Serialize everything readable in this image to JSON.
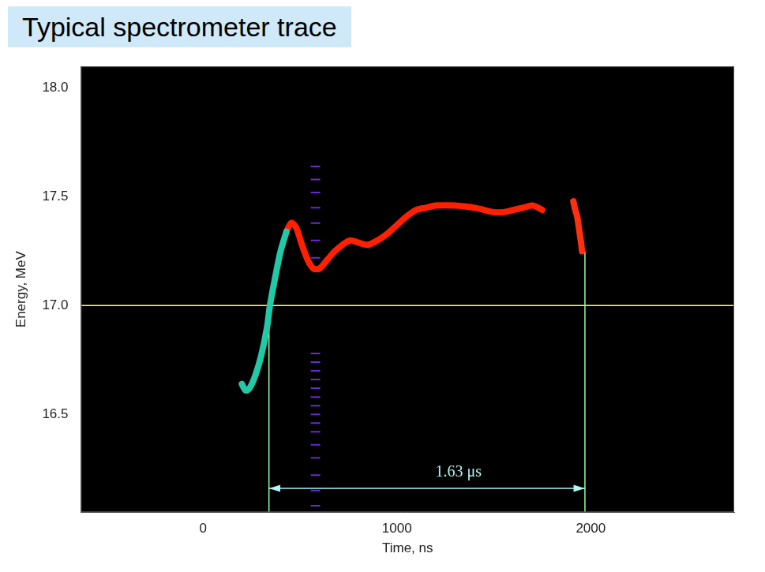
{
  "chart_data": {
    "type": "line",
    "title": "Typical spectrometer trace",
    "x_label": "Time, ns",
    "y_label": "Energy, MeV",
    "xlim": [
      -630,
      2740
    ],
    "xticks": [
      0,
      1000,
      2000
    ],
    "ylim": [
      16.05,
      18.1
    ],
    "yticks": [
      16.5,
      {
        "value": 17,
        "label": "17.0"
      },
      17.5,
      {
        "value": 18,
        "label": "18.0"
      }
    ],
    "grid": false,
    "series": [
      {
        "color": "#22c8a8",
        "line_style": "solid",
        "x": [
          200,
          220,
          240,
          270,
          300,
          330,
          345,
          370,
          400,
          430
        ],
        "values": [
          16.64,
          16.61,
          16.62,
          16.68,
          16.77,
          16.9,
          17.0,
          17.12,
          17.25,
          17.34
        ]
      },
      {
        "color": "#ff2000",
        "line_style": "solid",
        "x": [
          430,
          455,
          480,
          510,
          540,
          570,
          600,
          640,
          680,
          720,
          760,
          800,
          850,
          900,
          950,
          1000,
          1050,
          1100,
          1150,
          1200,
          1300,
          1400,
          1450,
          1500,
          1550,
          1600,
          1650,
          1700,
          1750
        ],
        "values": [
          17.34,
          17.38,
          17.36,
          17.28,
          17.21,
          17.17,
          17.17,
          17.21,
          17.25,
          17.28,
          17.3,
          17.29,
          17.28,
          17.3,
          17.33,
          17.37,
          17.41,
          17.44,
          17.45,
          17.46,
          17.46,
          17.45,
          17.44,
          17.43,
          17.43,
          17.44,
          17.45,
          17.46,
          17.44
        ]
      },
      {
        "color": "#ff3010",
        "line_style": "solid",
        "x": [
          1910,
          1920,
          1930,
          1940,
          1950,
          1955
        ],
        "values": [
          17.48,
          17.44,
          17.41,
          17.35,
          17.29,
          17.25
        ]
      },
      {
        "color": "#6a2ad0",
        "marker": "dash",
        "line_style": "none",
        "x": [
          580,
          580,
          580,
          580,
          580,
          580,
          580,
          580,
          580,
          580,
          580,
          580,
          580,
          580,
          580,
          580,
          580,
          580,
          580,
          580,
          580,
          580
        ],
        "values": [
          16.08,
          16.15,
          16.22,
          16.3,
          16.36,
          16.42,
          16.46,
          16.5,
          16.54,
          16.58,
          16.62,
          16.66,
          16.7,
          16.74,
          16.78,
          17.22,
          17.3,
          17.38,
          17.45,
          17.52,
          17.58,
          17.64
        ]
      }
    ],
    "reference_lines": [
      {
        "axis": "y",
        "value": 17.0,
        "color": "#ffff66"
      },
      {
        "axis": "x",
        "value": 340,
        "to": 17.0,
        "color": "#99ff99"
      },
      {
        "axis": "x",
        "value": 1970,
        "to": 17.25,
        "color": "#99ff99"
      }
    ],
    "annotations": [
      {
        "text": "1.63 μs",
        "from": 340,
        "to": 1970,
        "y": 16.16,
        "color": "#b0f4f4"
      }
    ]
  }
}
